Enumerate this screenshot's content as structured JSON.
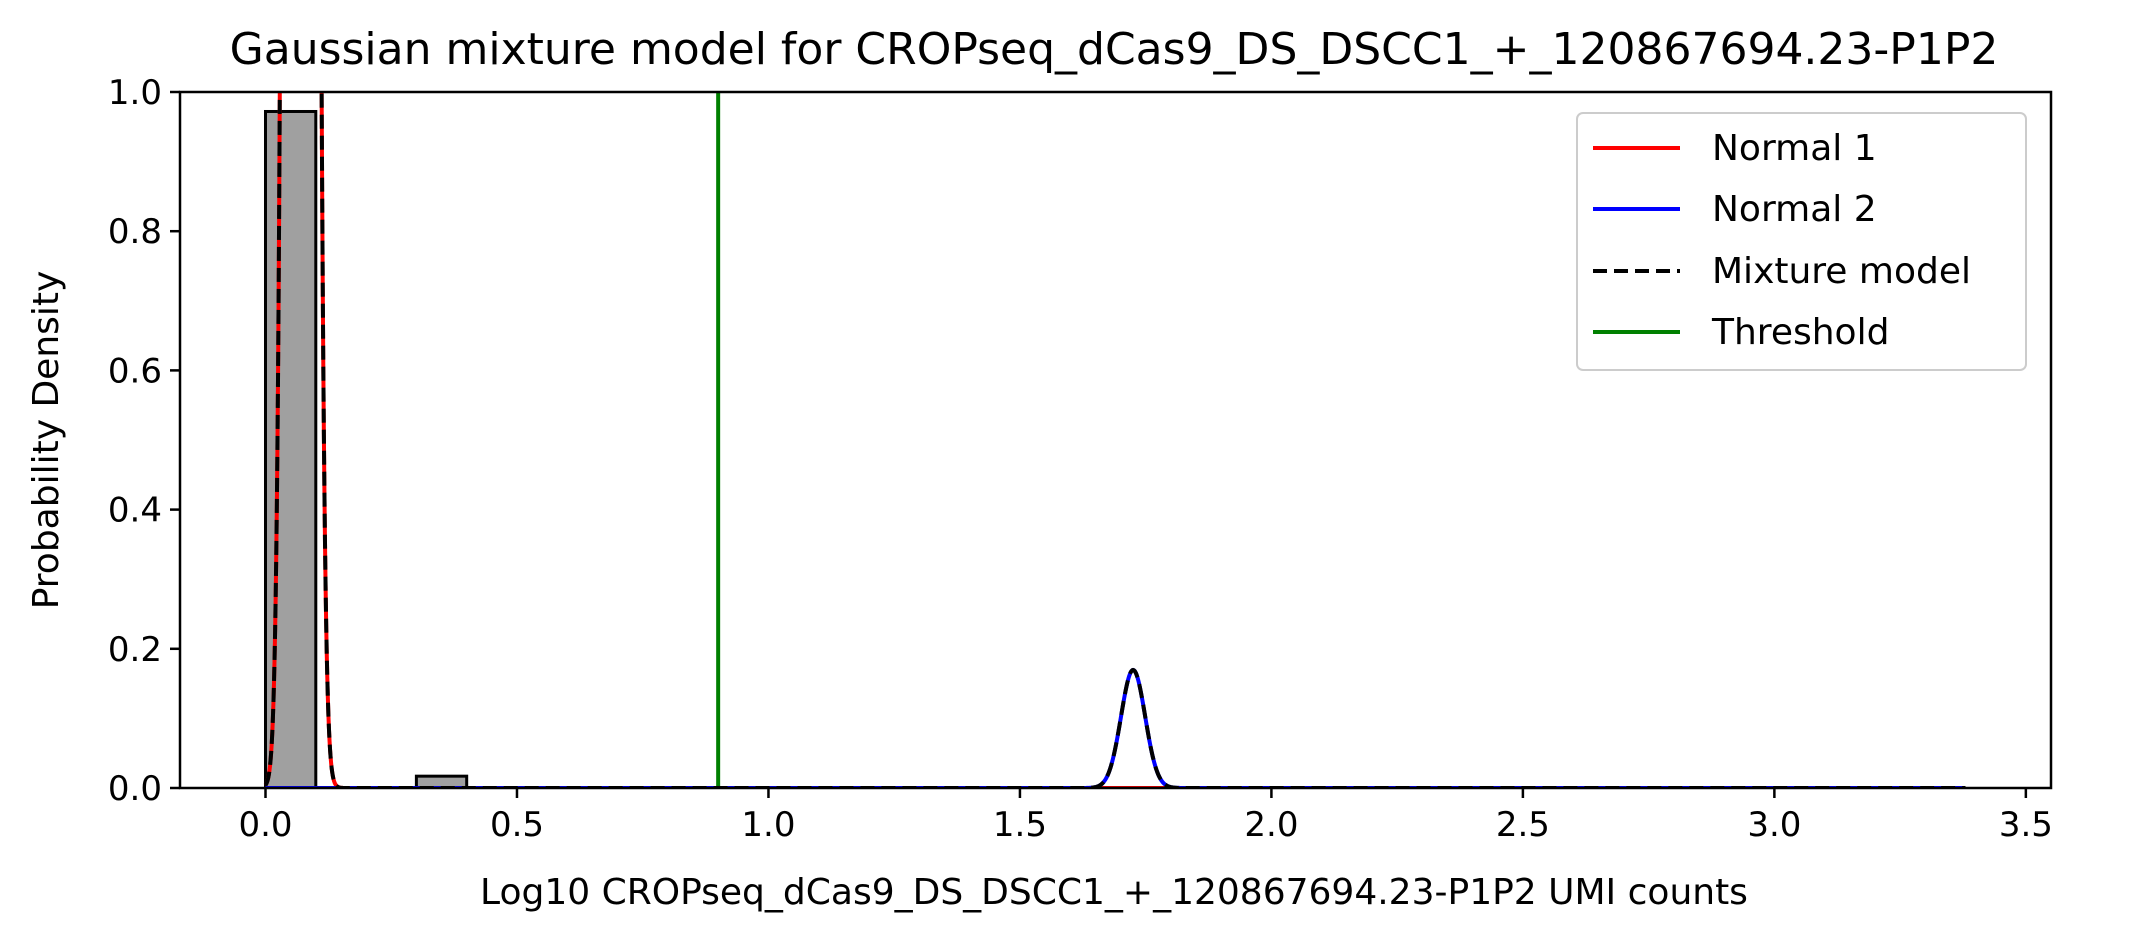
{
  "chart_data": {
    "type": "bar",
    "title": "Gaussian mixture model for CROPseq_dCas9_DS_DSCC1_+_120867694.23-P1P2",
    "xlabel": "Log10 CROPseq_dCas9_DS_DSCC1_+_120867694.23-P1P2 UMI counts",
    "ylabel": "Probability Density",
    "xlim": [
      -0.17,
      3.55
    ],
    "ylim": [
      0.0,
      1.0
    ],
    "x_ticks": [
      0.0,
      0.5,
      1.0,
      1.5,
      2.0,
      2.5,
      3.0,
      3.5
    ],
    "x_tick_labels": [
      "0.0",
      "0.5",
      "1.0",
      "1.5",
      "2.0",
      "2.5",
      "3.0",
      "3.5"
    ],
    "y_ticks": [
      0.0,
      0.2,
      0.4,
      0.6,
      0.8,
      1.0
    ],
    "y_tick_labels": [
      "0.0",
      "0.2",
      "0.4",
      "0.6",
      "0.8",
      "1.0"
    ],
    "grid": false,
    "legend_position": "top-right",
    "histogram": {
      "color": "#a0a0a0",
      "edge_color": "#000000",
      "bins": [
        {
          "x0": 0.0,
          "x1": 0.1,
          "value": 0.972
        },
        {
          "x0": 0.3,
          "x1": 0.4,
          "value": 0.017
        }
      ]
    },
    "components": [
      {
        "name": "Normal 1",
        "color": "#ff0000",
        "style": "solid",
        "weight": 0.85,
        "mean": 0.07,
        "sd": 0.017
      },
      {
        "name": "Normal 2",
        "color": "#0000ff",
        "style": "solid",
        "weight": 0.0102,
        "mean": 1.725,
        "sd": 0.024
      }
    ],
    "mixture": {
      "name": "Mixture model",
      "color": "#000000",
      "style": "dashed"
    },
    "curve_range": [
      0.0,
      3.38
    ],
    "threshold": {
      "name": "Threshold",
      "color": "#008000",
      "x": 0.9
    }
  }
}
